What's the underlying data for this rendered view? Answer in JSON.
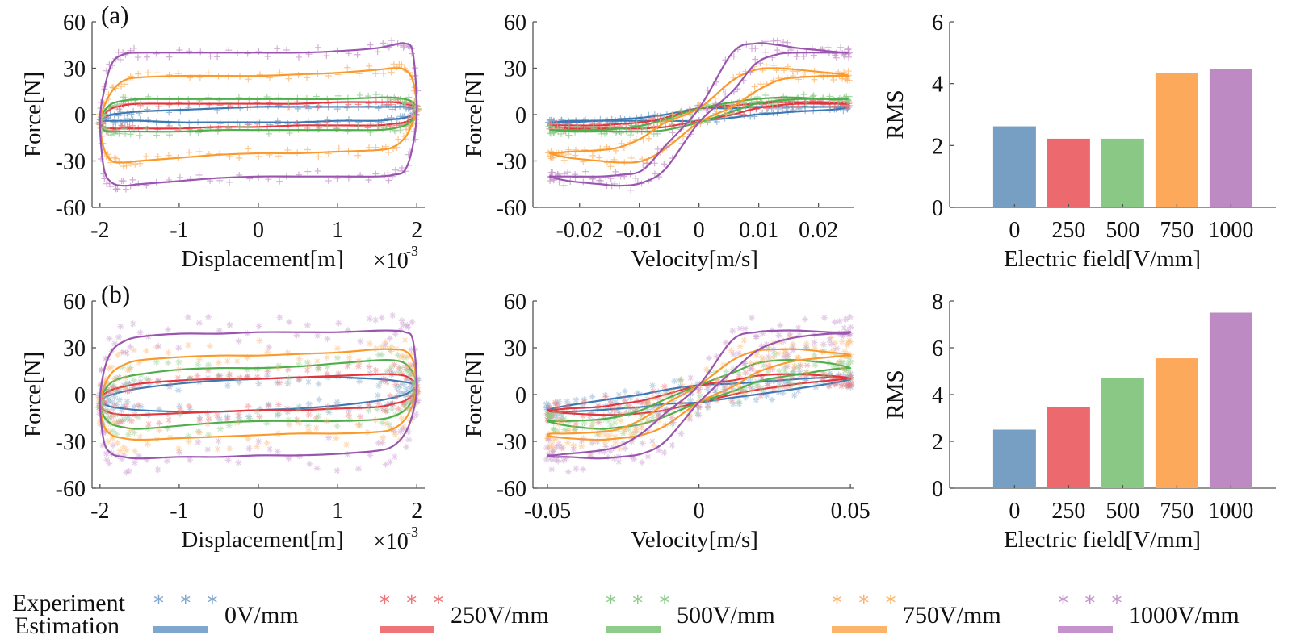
{
  "figure": {
    "panel_labels": [
      "(a)",
      "(b)"
    ]
  },
  "legend": {
    "experiment_label": "Experiment",
    "estimation_label": "Estimation",
    "marker_glyph": "* * *",
    "items": [
      {
        "label": "0V/mm",
        "line_color": "#3c78b4",
        "marker_color": "#7fa6cc"
      },
      {
        "label": "250V/mm",
        "line_color": "#e3353d",
        "marker_color": "#ee7478"
      },
      {
        "label": "500V/mm",
        "line_color": "#4fae4b",
        "marker_color": "#8fcb8b"
      },
      {
        "label": "750V/mm",
        "line_color": "#fa9a2c",
        "marker_color": "#fcb46a"
      },
      {
        "label": "1000V/mm",
        "line_color": "#9a55ae",
        "marker_color": "#c593cb"
      }
    ]
  },
  "chart_data": [
    {
      "type": "line",
      "panel": "(a)",
      "xlabel": "Displacement[m]",
      "x_multiplier_base": "×10",
      "x_multiplier_exp": "-3",
      "ylabel": "Force[N]",
      "xlim": [
        -2.1,
        2.1
      ],
      "ylim": [
        -60,
        60
      ],
      "xticks": [
        "-2",
        "-1",
        "0",
        "1",
        "2"
      ],
      "yticks": [
        "-60",
        "-30",
        "0",
        "30",
        "60"
      ],
      "x": [
        -2,
        -1.95,
        -1.85,
        -1.7,
        -1.5,
        -1,
        -0.5,
        0,
        0.5,
        1,
        1.5,
        1.7,
        1.85,
        1.95,
        2
      ],
      "series": [
        {
          "name": "0V/mm",
          "upper": [
            -4,
            -2,
            0,
            1,
            2,
            3,
            4,
            5,
            5,
            5,
            5,
            5,
            5,
            4,
            4
          ],
          "lower": [
            -4,
            -4,
            -4,
            -4,
            -4,
            -5,
            -5,
            -5,
            -5,
            -4,
            -4,
            -3,
            -2,
            0,
            4
          ]
        },
        {
          "name": "250V/mm",
          "upper": [
            -4,
            0,
            4,
            6,
            7,
            7,
            7,
            7,
            7,
            8,
            8,
            8,
            7,
            6,
            4
          ],
          "lower": [
            -4,
            -8,
            -9,
            -9,
            -9,
            -9,
            -8,
            -8,
            -7,
            -7,
            -7,
            -6,
            -5,
            -2,
            4
          ]
        },
        {
          "name": "500V/mm",
          "upper": [
            -5,
            2,
            7,
            9,
            10,
            10,
            10,
            10,
            10,
            10,
            11,
            11,
            10,
            8,
            4
          ],
          "lower": [
            -5,
            -10,
            -11,
            -11,
            -11,
            -11,
            -10,
            -10,
            -10,
            -10,
            -10,
            -9,
            -7,
            -3,
            4
          ]
        },
        {
          "name": "750V/mm",
          "upper": [
            -5,
            5,
            15,
            22,
            24,
            25,
            25,
            25,
            26,
            27,
            29,
            30,
            29,
            22,
            4
          ],
          "lower": [
            -5,
            -22,
            -30,
            -31,
            -30,
            -28,
            -26,
            -25,
            -25,
            -24,
            -23,
            -21,
            -15,
            -5,
            4
          ]
        },
        {
          "name": "1000V/mm",
          "upper": [
            -5,
            15,
            33,
            39,
            40,
            40,
            40,
            40,
            40,
            41,
            43,
            45,
            46,
            40,
            4
          ],
          "lower": [
            -5,
            -35,
            -44,
            -46,
            -45,
            -43,
            -41,
            -40,
            -40,
            -40,
            -40,
            -39,
            -36,
            -20,
            4
          ]
        }
      ]
    },
    {
      "type": "line",
      "panel": "(a)",
      "xlabel": "Velocity[m/s]",
      "ylabel": "Force[N]",
      "xlim": [
        -0.0278,
        0.026
      ],
      "ylim": [
        -60,
        60
      ],
      "xticks": [
        "-0.02",
        "-0.01",
        "0",
        "0.01",
        "0.02"
      ],
      "yticks": [
        "-60",
        "-30",
        "0",
        "30",
        "60"
      ],
      "velocity_upper": [
        0,
        0.0056,
        0.0095,
        0.0132,
        0.0165,
        0.0217,
        0.0242,
        0.025,
        0.0242,
        0.0217,
        0.0165,
        0.0132,
        0.0095,
        0.0056,
        0
      ],
      "velocity_lower": [
        0,
        -0.0056,
        -0.0095,
        -0.0132,
        -0.0165,
        -0.0217,
        -0.0242,
        -0.025,
        -0.0242,
        -0.0217,
        -0.0165,
        -0.0132,
        -0.0095,
        -0.0056,
        0
      ],
      "series": [
        {
          "name": "0V/mm",
          "upper": [
            -4,
            -2,
            0,
            1,
            2,
            3,
            4,
            5,
            5,
            5,
            5,
            5,
            5,
            4,
            4
          ],
          "lower": [
            -4,
            -4,
            -4,
            -4,
            -4,
            -5,
            -5,
            -5,
            -5,
            -4,
            -4,
            -3,
            -2,
            0,
            4
          ]
        },
        {
          "name": "250V/mm",
          "upper": [
            -4,
            0,
            4,
            6,
            7,
            7,
            7,
            7,
            7,
            8,
            8,
            8,
            7,
            6,
            4
          ],
          "lower": [
            -4,
            -8,
            -9,
            -9,
            -9,
            -9,
            -8,
            -8,
            -7,
            -7,
            -7,
            -6,
            -5,
            -2,
            4
          ]
        },
        {
          "name": "500V/mm",
          "upper": [
            -5,
            2,
            7,
            9,
            10,
            10,
            10,
            10,
            10,
            10,
            11,
            11,
            10,
            8,
            4
          ],
          "lower": [
            -5,
            -10,
            -11,
            -11,
            -11,
            -11,
            -10,
            -10,
            -10,
            -10,
            -10,
            -9,
            -7,
            -3,
            4
          ]
        },
        {
          "name": "750V/mm",
          "upper": [
            -5,
            5,
            15,
            22,
            24,
            25,
            25,
            25,
            26,
            27,
            29,
            30,
            29,
            22,
            4
          ],
          "lower": [
            -5,
            -22,
            -30,
            -31,
            -30,
            -28,
            -26,
            -25,
            -25,
            -24,
            -23,
            -21,
            -15,
            -5,
            4
          ]
        },
        {
          "name": "1000V/mm",
          "upper": [
            -5,
            15,
            33,
            39,
            40,
            40,
            40,
            40,
            40,
            41,
            43,
            45,
            46,
            40,
            4
          ],
          "lower": [
            -5,
            -35,
            -44,
            -46,
            -45,
            -43,
            -41,
            -40,
            -40,
            -40,
            -40,
            -39,
            -36,
            -20,
            4
          ]
        }
      ]
    },
    {
      "type": "bar",
      "panel": "(a)",
      "xlabel": "Electric field[V/mm]",
      "ylabel": "RMS",
      "ylim": [
        0,
        6
      ],
      "yticks": [
        "0",
        "2",
        "4",
        "6"
      ],
      "categories": [
        "0",
        "250",
        "500",
        "750",
        "1000"
      ],
      "values": [
        2.62,
        2.22,
        2.22,
        4.35,
        4.47
      ],
      "colors": [
        "#779fc3",
        "#ec6a6d",
        "#8ac985",
        "#fda95b",
        "#bd8ac3"
      ]
    },
    {
      "type": "line",
      "panel": "(b)",
      "xlabel": "Displacement[m]",
      "x_multiplier_base": "×10",
      "x_multiplier_exp": "-3",
      "ylabel": "Force[N]",
      "xlim": [
        -2.1,
        2.1
      ],
      "ylim": [
        -60,
        60
      ],
      "xticks": [
        "-2",
        "-1",
        "0",
        "1",
        "2"
      ],
      "yticks": [
        "-60",
        "-30",
        "0",
        "30",
        "60"
      ],
      "x": [
        -2,
        -1.95,
        -1.85,
        -1.7,
        -1.5,
        -1,
        -0.5,
        0,
        0.5,
        1,
        1.5,
        1.7,
        1.85,
        1.95,
        2
      ],
      "series": [
        {
          "name": "0V/mm",
          "upper": [
            -5,
            -2,
            0,
            2,
            4,
            7,
            9,
            10,
            11,
            11,
            10,
            9,
            8,
            7,
            6
          ],
          "lower": [
            -5,
            -6,
            -8,
            -9,
            -10,
            -11,
            -11,
            -10,
            -9,
            -7,
            -4,
            -2,
            0,
            3,
            6
          ]
        },
        {
          "name": "250V/mm",
          "upper": [
            -5,
            0,
            3,
            5,
            7,
            9,
            10,
            10,
            11,
            12,
            13,
            13,
            12,
            9,
            6
          ],
          "lower": [
            -5,
            -10,
            -12,
            -13,
            -13,
            -12,
            -11,
            -10,
            -10,
            -9,
            -8,
            -6,
            -4,
            0,
            6
          ]
        },
        {
          "name": "500V/mm",
          "upper": [
            -5,
            2,
            8,
            11,
            13,
            16,
            17,
            17,
            18,
            20,
            22,
            22,
            20,
            14,
            6
          ],
          "lower": [
            -5,
            -14,
            -19,
            -21,
            -22,
            -20,
            -18,
            -17,
            -17,
            -17,
            -16,
            -14,
            -10,
            -3,
            6
          ]
        },
        {
          "name": "750V/mm",
          "upper": [
            -5,
            5,
            14,
            19,
            22,
            24,
            25,
            25,
            26,
            27,
            29,
            29,
            28,
            22,
            6
          ],
          "lower": [
            -5,
            -20,
            -26,
            -28,
            -29,
            -28,
            -27,
            -26,
            -25,
            -25,
            -24,
            -22,
            -16,
            -6,
            6
          ]
        },
        {
          "name": "1000V/mm",
          "upper": [
            -5,
            15,
            28,
            34,
            37,
            39,
            39,
            40,
            40,
            40,
            41,
            41,
            40,
            35,
            6
          ],
          "lower": [
            -5,
            -30,
            -38,
            -40,
            -41,
            -40,
            -40,
            -39,
            -39,
            -38,
            -36,
            -33,
            -25,
            -12,
            6
          ]
        }
      ]
    },
    {
      "type": "line",
      "panel": "(b)",
      "xlabel": "Velocity[m/s]",
      "ylabel": "Force[N]",
      "xlim": [
        -0.0548,
        0.0513
      ],
      "ylim": [
        -60,
        60
      ],
      "xticks": [
        "-0.05",
        "0",
        "0.05"
      ],
      "yticks": [
        "-60",
        "-30",
        "0",
        "30",
        "60"
      ],
      "velocity_upper": [
        0,
        0.0111,
        0.019,
        0.0263,
        0.0331,
        0.0433,
        0.0484,
        0.05,
        0.0484,
        0.0433,
        0.0331,
        0.0263,
        0.019,
        0.0111,
        0
      ],
      "velocity_lower": [
        0,
        -0.0111,
        -0.019,
        -0.0263,
        -0.0331,
        -0.0433,
        -0.0484,
        -0.05,
        -0.0484,
        -0.0433,
        -0.0331,
        -0.0263,
        -0.019,
        -0.0111,
        0
      ],
      "series": [
        {
          "name": "0V/mm",
          "upper": [
            -5,
            -2,
            0,
            2,
            4,
            7,
            9,
            10,
            11,
            11,
            10,
            9,
            8,
            7,
            6
          ],
          "lower": [
            -5,
            -6,
            -8,
            -9,
            -10,
            -11,
            -11,
            -10,
            -9,
            -7,
            -4,
            -2,
            0,
            3,
            6
          ]
        },
        {
          "name": "250V/mm",
          "upper": [
            -5,
            0,
            3,
            5,
            7,
            9,
            10,
            10,
            11,
            12,
            13,
            13,
            12,
            9,
            6
          ],
          "lower": [
            -5,
            -10,
            -12,
            -13,
            -13,
            -12,
            -11,
            -10,
            -10,
            -9,
            -8,
            -6,
            -4,
            0,
            6
          ]
        },
        {
          "name": "500V/mm",
          "upper": [
            -5,
            2,
            8,
            11,
            13,
            16,
            17,
            17,
            18,
            20,
            22,
            22,
            20,
            14,
            6
          ],
          "lower": [
            -5,
            -14,
            -19,
            -21,
            -22,
            -20,
            -18,
            -17,
            -17,
            -17,
            -16,
            -14,
            -10,
            -3,
            6
          ]
        },
        {
          "name": "750V/mm",
          "upper": [
            -5,
            5,
            14,
            19,
            22,
            24,
            25,
            25,
            26,
            27,
            29,
            29,
            28,
            22,
            6
          ],
          "lower": [
            -5,
            -20,
            -26,
            -28,
            -29,
            -28,
            -27,
            -26,
            -25,
            -25,
            -24,
            -22,
            -16,
            -6,
            6
          ]
        },
        {
          "name": "1000V/mm",
          "upper": [
            -5,
            15,
            28,
            34,
            37,
            39,
            39,
            40,
            40,
            40,
            41,
            41,
            40,
            35,
            6
          ],
          "lower": [
            -5,
            -30,
            -38,
            -40,
            -41,
            -40,
            -40,
            -39,
            -39,
            -38,
            -36,
            -33,
            -25,
            -12,
            6
          ]
        }
      ]
    },
    {
      "type": "bar",
      "panel": "(b)",
      "xlabel": "Electric field[V/mm]",
      "ylabel": "RMS",
      "ylim": [
        0,
        8
      ],
      "yticks": [
        "0",
        "2",
        "4",
        "6",
        "8"
      ],
      "categories": [
        "0",
        "250",
        "500",
        "750",
        "1000"
      ],
      "values": [
        2.5,
        3.45,
        4.7,
        5.55,
        7.5
      ],
      "colors": [
        "#779fc3",
        "#ec6a6d",
        "#8ac985",
        "#fda95b",
        "#bd8ac3"
      ]
    }
  ]
}
